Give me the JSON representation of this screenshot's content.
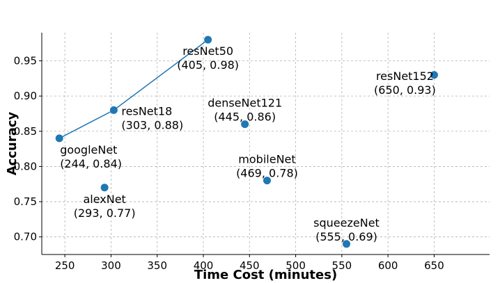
{
  "chart_data": {
    "type": "scatter",
    "title": "",
    "xlabel": "Time Cost (minutes)",
    "ylabel": "Accuracy",
    "xlim": [
      225,
      710
    ],
    "ylim": [
      0.675,
      0.99
    ],
    "xticks": [
      250,
      300,
      350,
      400,
      450,
      500,
      550,
      600,
      650
    ],
    "yticks": [
      0.7,
      0.75,
      0.8,
      0.85,
      0.9,
      0.95
    ],
    "grid": true,
    "marker_color": "#1f77b4",
    "line_color": "#1f77b4",
    "connected_series": [
      "googleNet",
      "resNet18",
      "resNet50"
    ],
    "points": [
      {
        "name": "googleNet",
        "x": 244,
        "y": 0.84,
        "label": "(244, 0.84)",
        "label_pos": "below-right"
      },
      {
        "name": "resNet18",
        "x": 303,
        "y": 0.88,
        "label": "(303, 0.88)",
        "label_pos": "right"
      },
      {
        "name": "resNet50",
        "x": 405,
        "y": 0.98,
        "label": "(405, 0.98)",
        "label_pos": "below"
      },
      {
        "name": "alexNet",
        "x": 293,
        "y": 0.77,
        "label": "(293, 0.77)",
        "label_pos": "below"
      },
      {
        "name": "denseNet121",
        "x": 445,
        "y": 0.86,
        "label": "(445, 0.86)",
        "label_pos": "above"
      },
      {
        "name": "mobileNet",
        "x": 469,
        "y": 0.78,
        "label": "(469, 0.78)",
        "label_pos": "above"
      },
      {
        "name": "squeezeNet",
        "x": 555,
        "y": 0.69,
        "label": "(555, 0.69)",
        "label_pos": "above"
      },
      {
        "name": "resNet152",
        "x": 650,
        "y": 0.93,
        "label": "(650, 0.93)",
        "label_pos": "left"
      }
    ]
  }
}
